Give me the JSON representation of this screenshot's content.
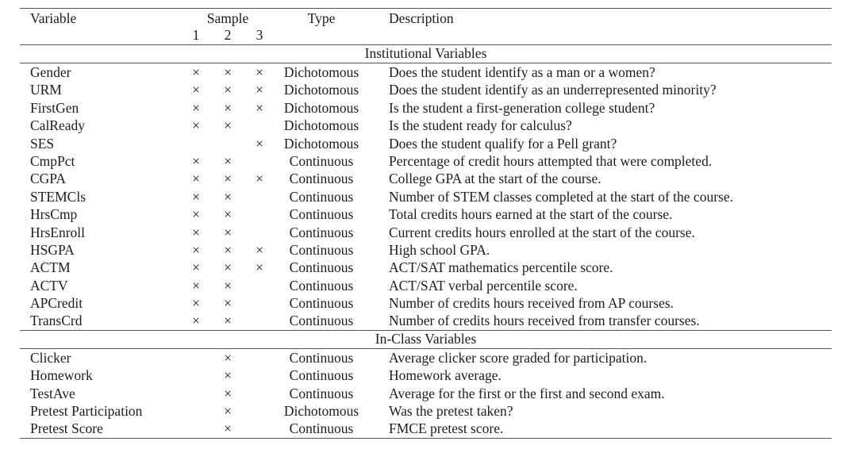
{
  "table": {
    "header": {
      "variable": "Variable",
      "sample": "Sample",
      "sample_cols": [
        "1",
        "2",
        "3"
      ],
      "type": "Type",
      "description": "Description"
    },
    "cross_mark": "×",
    "text_color": "#1c1c1c",
    "rule_color": "#555555",
    "sections": [
      {
        "title": "Institutional Variables",
        "rows": [
          {
            "variable": "Gender",
            "samples": [
              1,
              1,
              1
            ],
            "type": "Dichotomous",
            "description": "Does the student identify as a man or a women?"
          },
          {
            "variable": "URM",
            "samples": [
              1,
              1,
              1
            ],
            "type": "Dichotomous",
            "description": "Does the student identify as an underrepresented minority?"
          },
          {
            "variable": "FirstGen",
            "samples": [
              1,
              1,
              1
            ],
            "type": "Dichotomous",
            "description": "Is the student a first-generation college student?"
          },
          {
            "variable": "CalReady",
            "samples": [
              1,
              1,
              0
            ],
            "type": "Dichotomous",
            "description": "Is the student ready for calculus?"
          },
          {
            "variable": "SES",
            "samples": [
              0,
              0,
              1
            ],
            "type": "Dichotomous",
            "description": "Does the student qualify for a Pell grant?"
          },
          {
            "variable": "CmpPct",
            "samples": [
              1,
              1,
              0
            ],
            "type": "Continuous",
            "description": "Percentage of credit hours attempted that were completed."
          },
          {
            "variable": "CGPA",
            "samples": [
              1,
              1,
              1
            ],
            "type": "Continuous",
            "description": "College GPA at the start of the course."
          },
          {
            "variable": "STEMCls",
            "samples": [
              1,
              1,
              0
            ],
            "type": "Continuous",
            "description": "Number of STEM classes completed at the start of the course."
          },
          {
            "variable": "HrsCmp",
            "samples": [
              1,
              1,
              0
            ],
            "type": "Continuous",
            "description": "Total credits hours earned at the start of the course."
          },
          {
            "variable": "HrsEnroll",
            "samples": [
              1,
              1,
              0
            ],
            "type": "Continuous",
            "description": "Current credits hours enrolled at the start of the course."
          },
          {
            "variable": "HSGPA",
            "samples": [
              1,
              1,
              1
            ],
            "type": "Continuous",
            "description": "High school GPA."
          },
          {
            "variable": "ACTM",
            "samples": [
              1,
              1,
              1
            ],
            "type": "Continuous",
            "description": "ACT/SAT mathematics percentile score."
          },
          {
            "variable": "ACTV",
            "samples": [
              1,
              1,
              0
            ],
            "type": "Continuous",
            "description": "ACT/SAT verbal percentile score."
          },
          {
            "variable": "APCredit",
            "samples": [
              1,
              1,
              0
            ],
            "type": "Continuous",
            "description": "Number of credits hours received from AP courses."
          },
          {
            "variable": "TransCrd",
            "samples": [
              1,
              1,
              0
            ],
            "type": "Continuous",
            "description": "Number of credits hours received from transfer courses."
          }
        ]
      },
      {
        "title": "In-Class Variables",
        "rows": [
          {
            "variable": "Clicker",
            "samples": [
              0,
              1,
              0
            ],
            "type": "Continuous",
            "description": "Average clicker score graded for participation."
          },
          {
            "variable": "Homework",
            "samples": [
              0,
              1,
              0
            ],
            "type": "Continuous",
            "description": "Homework average."
          },
          {
            "variable": "TestAve",
            "samples": [
              0,
              1,
              0
            ],
            "type": "Continuous",
            "description": "Average for the first or the first and second exam."
          },
          {
            "variable": "Pretest Participation",
            "samples": [
              0,
              1,
              0
            ],
            "type": "Dichotomous",
            "description": "Was the pretest taken?"
          },
          {
            "variable": "Pretest Score",
            "samples": [
              0,
              1,
              0
            ],
            "type": "Continuous",
            "description": "FMCE pretest score."
          }
        ]
      }
    ]
  }
}
